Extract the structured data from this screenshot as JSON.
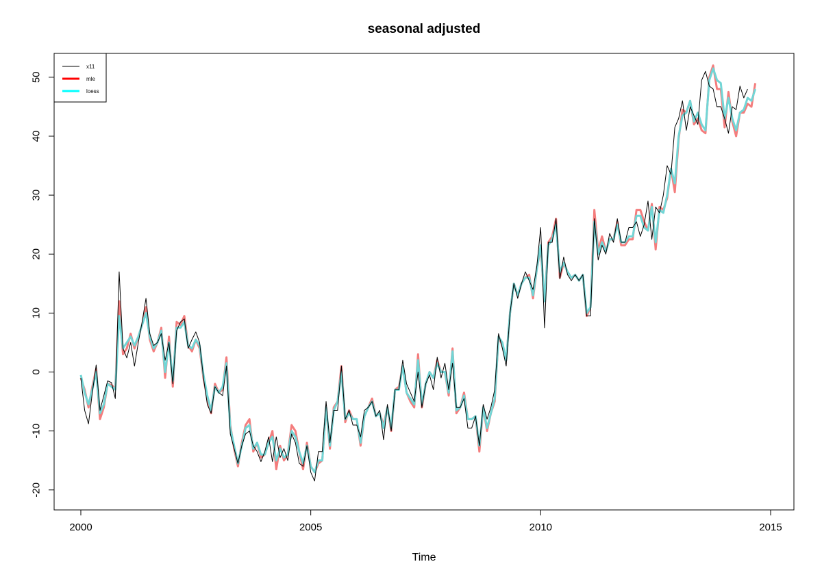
{
  "chart_data": {
    "type": "line",
    "title": "seasonal adjusted",
    "xlabel": "Time",
    "ylabel": "",
    "xlim": [
      2000,
      2015
    ],
    "ylim": [
      -22,
      53
    ],
    "x_ticks": [
      2000,
      2005,
      2010,
      2015
    ],
    "y_ticks": [
      -20,
      -10,
      0,
      10,
      20,
      30,
      40,
      50
    ],
    "grid": false,
    "legend_position": "top-left",
    "x_start": 2000,
    "frequency": 12,
    "series": [
      {
        "name": "x11",
        "color": "#000000",
        "width": 1,
        "values": [
          -1,
          -6.5,
          -8.8,
          -3.5,
          1.2,
          -6.5,
          -4,
          -1.5,
          -1.8,
          -4.5,
          17,
          4,
          2.4,
          5,
          1,
          5,
          8.5,
          12.5,
          6.5,
          4.5,
          5,
          6.5,
          2,
          5,
          -2,
          7,
          8.5,
          9,
          4,
          5.5,
          6.8,
          5,
          -1,
          -5.5,
          -7,
          -2.5,
          -3.5,
          -4,
          1,
          -10.5,
          -13,
          -15.5,
          -12.5,
          -10.5,
          -10,
          -12.5,
          -13.5,
          -15.2,
          -13.5,
          -11,
          -15.2,
          -11,
          -14.5,
          -13,
          -15,
          -10.5,
          -12,
          -15.5,
          -16,
          -12.5,
          -17,
          -18.5,
          -13.5,
          -13.5,
          -5,
          -12,
          -6.5,
          -6.5,
          1,
          -8,
          -6.5,
          -9,
          -9,
          -11,
          -6.5,
          -6,
          -5,
          -7.5,
          -6.5,
          -11.5,
          -5.5,
          -10,
          -3,
          -3,
          2,
          -2,
          -3.5,
          -5,
          0,
          -6,
          -2,
          -0.5,
          -3,
          2.5,
          -1,
          1.5,
          -3,
          1.5,
          -6,
          -6,
          -4.5,
          -9.5,
          -9.5,
          -7.5,
          -12.5,
          -5.5,
          -8,
          -6,
          -3,
          6.5,
          4,
          1,
          10,
          15,
          12.5,
          15,
          17,
          15.5,
          14,
          18,
          24.5,
          7.5,
          22,
          22,
          26,
          15.8,
          19.5,
          16.5,
          15.5,
          16.5,
          15.5,
          16.5,
          9.5,
          9.5,
          26,
          19,
          21.5,
          20,
          23.5,
          22,
          26,
          22,
          22,
          24.5,
          24.5,
          25.5,
          23,
          25,
          29,
          22.5,
          28,
          27,
          30,
          35,
          33.5,
          41.5,
          43,
          46,
          41,
          45,
          43.5,
          42,
          49.5,
          51,
          48.5,
          48,
          45,
          45,
          43,
          40.5,
          45,
          44.5,
          48.5,
          46.5,
          48
        ]
      },
      {
        "name": "mle",
        "color": "#ff0000",
        "width": 3,
        "values": [
          -1,
          -3,
          -6,
          -2.5,
          0.5,
          -8,
          -6,
          -2,
          -2.2,
          -2.8,
          12,
          3,
          4,
          6.5,
          4,
          6,
          8,
          11,
          5.5,
          3.5,
          5,
          7.5,
          -1,
          6,
          -2.5,
          8.5,
          8,
          9.5,
          4.5,
          3.5,
          5.5,
          4,
          -1,
          -4.5,
          -7,
          -2,
          -3.5,
          -3,
          2.5,
          -9,
          -13,
          -16,
          -12,
          -9,
          -8,
          -13.5,
          -12,
          -14.5,
          -14,
          -12,
          -10,
          -16.5,
          -12.5,
          -15,
          -14,
          -9,
          -10,
          -13.5,
          -16.5,
          -12,
          -16,
          -17,
          -15.5,
          -15,
          -6,
          -13,
          -6,
          -5,
          1,
          -8.5,
          -6.5,
          -8,
          -8,
          -12.5,
          -7.5,
          -6,
          -4.5,
          -7.5,
          -7,
          -9,
          -6,
          -10,
          -3,
          -2.5,
          1,
          -3.5,
          -5,
          -6,
          3,
          -6,
          -2,
          0,
          -1,
          2,
          0,
          0,
          -4,
          4,
          -7,
          -6,
          -3.5,
          -8,
          -8,
          -7.5,
          -13.5,
          -6,
          -10,
          -7,
          -5,
          6,
          4.5,
          2,
          10,
          15,
          13,
          15,
          16,
          16.5,
          12.5,
          17.5,
          21,
          12,
          22,
          23,
          26,
          16,
          18.5,
          17,
          16,
          16.5,
          15.5,
          16.5,
          9.5,
          11,
          27.5,
          20.5,
          23,
          20.5,
          22.5,
          22.5,
          25.5,
          21.5,
          21.5,
          22.5,
          22.5,
          27.5,
          27.5,
          25.5,
          24,
          28.5,
          20.8,
          28,
          27.5,
          29.5,
          34.5,
          30.5,
          39.5,
          44.5,
          44,
          46,
          42,
          43,
          41,
          40.5,
          50,
          52,
          48,
          48,
          41.5,
          47.5,
          42.5,
          40,
          44,
          44,
          45.5,
          45,
          49
        ]
      },
      {
        "name": "loess",
        "color": "#00ffff",
        "width": 3,
        "values": [
          -0.5,
          -3.5,
          -5.5,
          -3,
          0,
          -7,
          -5.5,
          -2,
          -2.5,
          -3,
          9.5,
          4,
          5,
          6,
          4.5,
          6,
          8,
          10,
          6,
          4,
          5,
          7,
          0,
          5,
          -1.5,
          7.5,
          7.5,
          8.5,
          4.5,
          4,
          5.5,
          4.5,
          -0.5,
          -4,
          -6.5,
          -2.5,
          -3.5,
          -2.5,
          1.5,
          -9.5,
          -12.5,
          -15.5,
          -12.5,
          -9.5,
          -9,
          -13,
          -12,
          -14,
          -14,
          -12,
          -11,
          -15,
          -13,
          -14.5,
          -14,
          -10,
          -11,
          -13.5,
          -15.5,
          -12.5,
          -16,
          -17,
          -15,
          -15,
          -6,
          -12.5,
          -6.5,
          -5,
          0,
          -8,
          -7,
          -8,
          -8,
          -12,
          -7.5,
          -6,
          -5,
          -7.5,
          -7,
          -9.5,
          -6,
          -9.5,
          -3,
          -3,
          1,
          -3.5,
          -4.5,
          -5.5,
          2,
          -5.5,
          -2,
          0,
          -1,
          1.5,
          0,
          0,
          -3.5,
          3.5,
          -6.5,
          -6,
          -4,
          -8,
          -8,
          -7.5,
          -12.5,
          -6,
          -9.5,
          -7,
          -4.5,
          6,
          5,
          2,
          10,
          15,
          13,
          15,
          16,
          16,
          13,
          17.5,
          21.5,
          12,
          21.5,
          22.5,
          25,
          17,
          18.5,
          17,
          16,
          16.5,
          15.5,
          16.5,
          10,
          11,
          25.5,
          20,
          22,
          20.5,
          22.5,
          22.5,
          25,
          22,
          22,
          23,
          23,
          26.5,
          26.5,
          24.5,
          24,
          28,
          22,
          27.5,
          27,
          30,
          34.5,
          32,
          40,
          43.5,
          44,
          46,
          42.5,
          44,
          42,
          41,
          49.5,
          51.5,
          49.5,
          49,
          43,
          46.5,
          43,
          41,
          44,
          44.5,
          46.5,
          46,
          48
        ]
      }
    ]
  }
}
